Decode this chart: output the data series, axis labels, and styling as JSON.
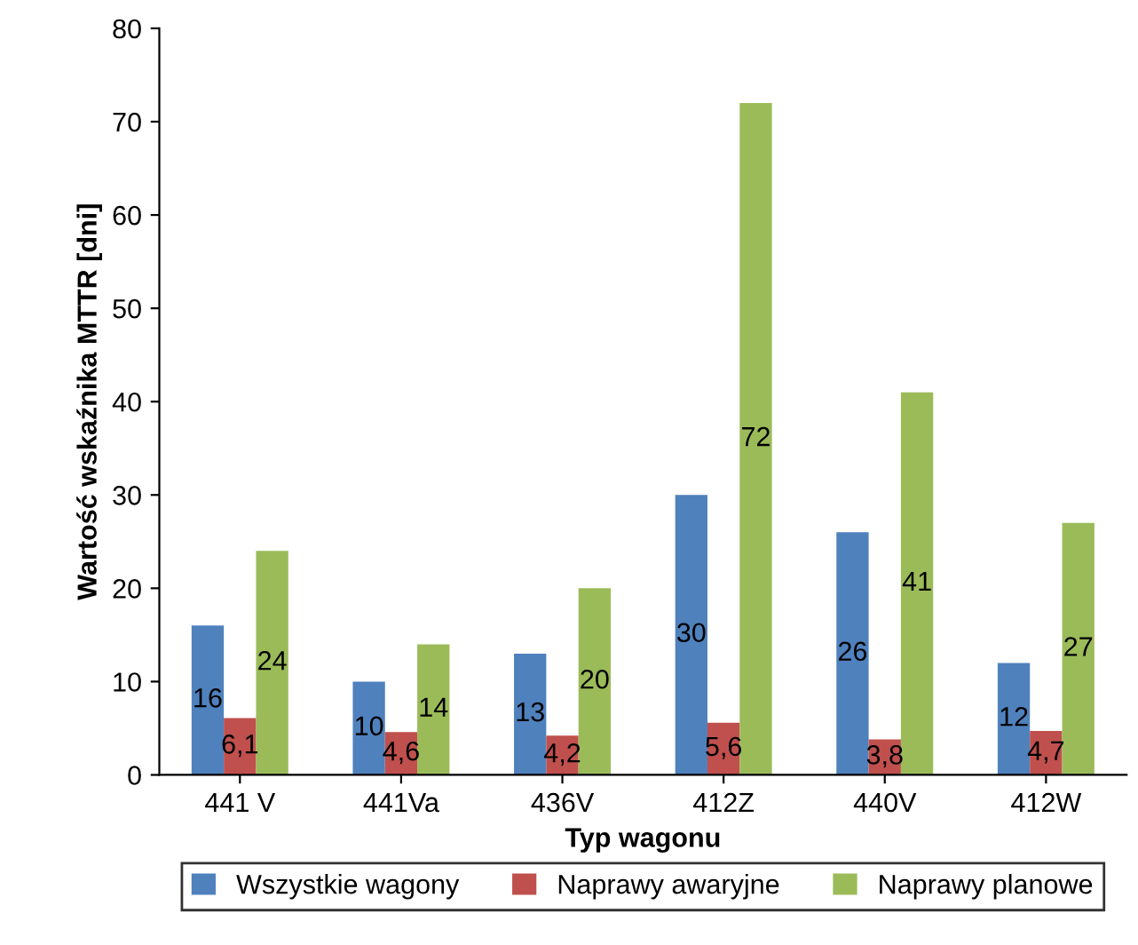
{
  "chart_data": {
    "type": "bar",
    "xlabel": "Typ wagonu",
    "ylabel": "Wartość wskaźnika MTTR [dni]",
    "categories": [
      "441 V",
      "441Va",
      "436V",
      "412Z",
      "440V",
      "412W"
    ],
    "series": [
      {
        "name": "Wszystkie wagony",
        "color": "#4f81bd",
        "values": [
          16,
          10,
          13,
          30,
          26,
          12
        ],
        "value_labels": [
          "16",
          "10",
          "13",
          "30",
          "26",
          "12"
        ]
      },
      {
        "name": "Naprawy awaryjne",
        "color": "#c0504d",
        "values": [
          6.1,
          4.6,
          4.2,
          5.6,
          3.8,
          4.7
        ],
        "value_labels": [
          "6,1",
          "4,6",
          "4,2",
          "5,6",
          "3,8",
          "4,7"
        ]
      },
      {
        "name": "Naprawy planowe",
        "color": "#9bbb59",
        "values": [
          24,
          14,
          20,
          72,
          41,
          27
        ],
        "value_labels": [
          "24",
          "14",
          "20",
          "72",
          "41",
          "27"
        ]
      }
    ],
    "ylim": [
      0,
      80
    ],
    "yticks": [
      0,
      10,
      20,
      30,
      40,
      50,
      60,
      70,
      80
    ],
    "grid": false,
    "legend": "bottom"
  }
}
